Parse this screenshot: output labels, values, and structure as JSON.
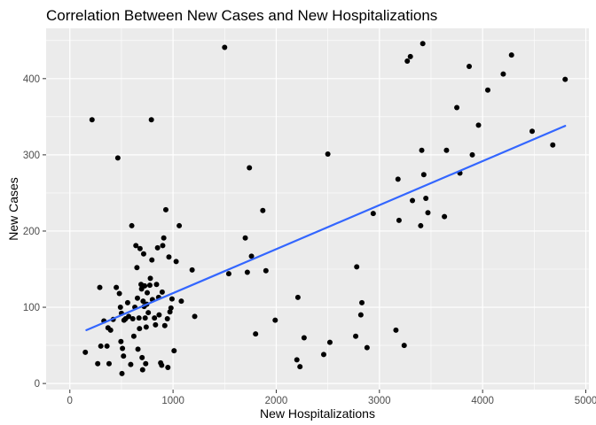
{
  "chart_data": {
    "type": "scatter",
    "title": "Correlation Between New Cases and New Hospitalizations",
    "xlabel": "New Hospitalizations",
    "ylabel": "New Cases",
    "xlim": [
      -230,
      5030
    ],
    "ylim": [
      -8,
      466
    ],
    "x_ticks": [
      0,
      1000,
      2000,
      3000,
      4000,
      5000
    ],
    "y_ticks": [
      0,
      100,
      200,
      300,
      400
    ],
    "grid": true,
    "legend": "none",
    "colors": {
      "panel": "#ebebeb",
      "grid_major": "#ffffff",
      "point": "#000000",
      "trend": "#3366ff"
    },
    "trend_line": {
      "x": [
        160,
        4800
      ],
      "y": [
        70,
        338
      ]
    },
    "points": [
      [
        150,
        41
      ],
      [
        215,
        346
      ],
      [
        290,
        126
      ],
      [
        270,
        26
      ],
      [
        300,
        49
      ],
      [
        330,
        82
      ],
      [
        360,
        49
      ],
      [
        370,
        73
      ],
      [
        380,
        26
      ],
      [
        395,
        70
      ],
      [
        420,
        84
      ],
      [
        450,
        126
      ],
      [
        465,
        296
      ],
      [
        480,
        118
      ],
      [
        490,
        100
      ],
      [
        495,
        55
      ],
      [
        500,
        92
      ],
      [
        505,
        13
      ],
      [
        510,
        46
      ],
      [
        520,
        36
      ],
      [
        525,
        83
      ],
      [
        540,
        85
      ],
      [
        560,
        106
      ],
      [
        570,
        88
      ],
      [
        590,
        25
      ],
      [
        600,
        207
      ],
      [
        610,
        85
      ],
      [
        620,
        62
      ],
      [
        630,
        100
      ],
      [
        640,
        181
      ],
      [
        650,
        152
      ],
      [
        655,
        112
      ],
      [
        660,
        45
      ],
      [
        670,
        86
      ],
      [
        675,
        72
      ],
      [
        680,
        177
      ],
      [
        690,
        130
      ],
      [
        695,
        124
      ],
      [
        700,
        34
      ],
      [
        705,
        18
      ],
      [
        710,
        108
      ],
      [
        715,
        170
      ],
      [
        720,
        101
      ],
      [
        725,
        128
      ],
      [
        730,
        86
      ],
      [
        735,
        26
      ],
      [
        740,
        74
      ],
      [
        745,
        104
      ],
      [
        750,
        119
      ],
      [
        760,
        93
      ],
      [
        775,
        129
      ],
      [
        780,
        138
      ],
      [
        790,
        346
      ],
      [
        795,
        162
      ],
      [
        800,
        110
      ],
      [
        820,
        86
      ],
      [
        830,
        77
      ],
      [
        840,
        130
      ],
      [
        850,
        178
      ],
      [
        860,
        113
      ],
      [
        865,
        90
      ],
      [
        880,
        27
      ],
      [
        890,
        24
      ],
      [
        895,
        120
      ],
      [
        900,
        181
      ],
      [
        910,
        191
      ],
      [
        920,
        76
      ],
      [
        930,
        228
      ],
      [
        945,
        85
      ],
      [
        950,
        21
      ],
      [
        960,
        166
      ],
      [
        970,
        94
      ],
      [
        980,
        99
      ],
      [
        990,
        111
      ],
      [
        1010,
        43
      ],
      [
        1030,
        160
      ],
      [
        1060,
        207
      ],
      [
        1080,
        108
      ],
      [
        1185,
        149
      ],
      [
        1210,
        88
      ],
      [
        1500,
        441
      ],
      [
        1540,
        144
      ],
      [
        1700,
        191
      ],
      [
        1720,
        146
      ],
      [
        1740,
        283
      ],
      [
        1760,
        167
      ],
      [
        1800,
        65
      ],
      [
        1870,
        227
      ],
      [
        1900,
        148
      ],
      [
        1990,
        83
      ],
      [
        2200,
        31
      ],
      [
        2210,
        113
      ],
      [
        2230,
        22
      ],
      [
        2270,
        60
      ],
      [
        2460,
        38
      ],
      [
        2500,
        301
      ],
      [
        2520,
        54
      ],
      [
        2770,
        62
      ],
      [
        2780,
        153
      ],
      [
        2820,
        90
      ],
      [
        2830,
        106
      ],
      [
        2880,
        47
      ],
      [
        2940,
        223
      ],
      [
        3160,
        70
      ],
      [
        3180,
        268
      ],
      [
        3190,
        214
      ],
      [
        3240,
        50
      ],
      [
        3270,
        423
      ],
      [
        3300,
        429
      ],
      [
        3320,
        240
      ],
      [
        3400,
        207
      ],
      [
        3410,
        306
      ],
      [
        3420,
        446
      ],
      [
        3430,
        274
      ],
      [
        3450,
        243
      ],
      [
        3470,
        224
      ],
      [
        3630,
        219
      ],
      [
        3650,
        306
      ],
      [
        3750,
        362
      ],
      [
        3780,
        276
      ],
      [
        3870,
        416
      ],
      [
        3900,
        300
      ],
      [
        3960,
        339
      ],
      [
        4050,
        385
      ],
      [
        4200,
        406
      ],
      [
        4280,
        431
      ],
      [
        4480,
        331
      ],
      [
        4680,
        313
      ],
      [
        4800,
        399
      ]
    ]
  }
}
